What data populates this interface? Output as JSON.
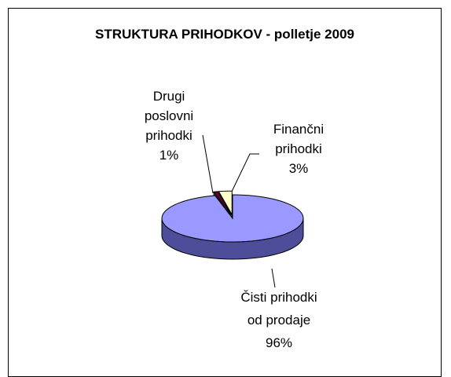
{
  "chart_data": {
    "type": "pie",
    "title": "STRUKTURA PRIHODKOV - polletje 2009",
    "categories": [
      "Čisti prihodki od prodaje",
      "Drugi poslovni prihodki",
      "Finančni prihodki"
    ],
    "values": [
      96,
      1,
      3
    ],
    "value_labels": [
      "96%",
      "1%",
      "3%"
    ],
    "colors": [
      "#9999ff",
      "#660033",
      "#ffffcc"
    ]
  }
}
